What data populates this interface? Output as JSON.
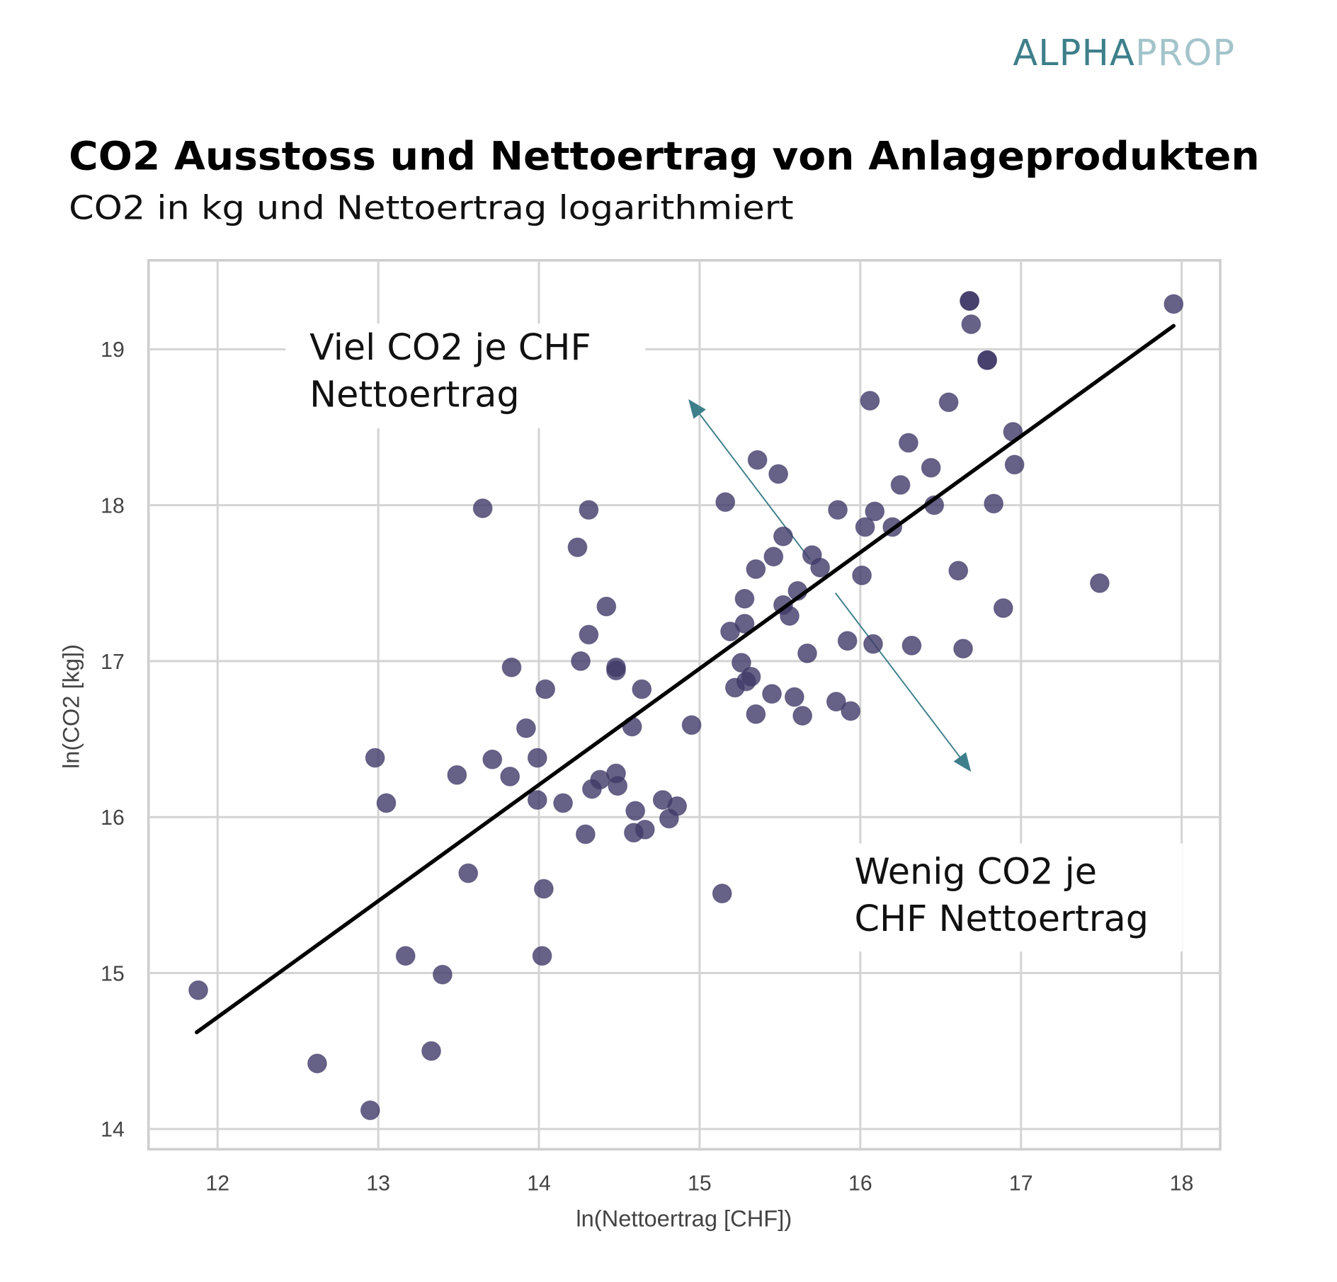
{
  "logo": {
    "text_primary": "ALPHA",
    "text_secondary": "PROP",
    "color_primary": "#3d7f8a",
    "color_secondary": "#a3c4ca"
  },
  "chart_data": {
    "type": "scatter",
    "title": "CO2 Ausstoss und Nettoertrag von Anlageprodukten",
    "subtitle": "CO2 in kg und Nettoertrag logarithmiert",
    "xlabel": "ln(Nettoertrag [CHF])",
    "ylabel": "ln(CO2 [kg])",
    "xlim": [
      11.57,
      18.24
    ],
    "ylim": [
      13.87,
      19.57
    ],
    "xticks": [
      12,
      13,
      14,
      15,
      16,
      17,
      18
    ],
    "yticks": [
      14,
      15,
      16,
      17,
      18,
      19
    ],
    "grid": true,
    "point_color": "#403a68",
    "trend_line": {
      "color": "#000000",
      "points": [
        [
          11.87,
          14.62
        ],
        [
          17.95,
          19.15
        ]
      ]
    },
    "arrow_color": "#3d7f8a",
    "arrow": {
      "from": [
        14.93,
        18.68
      ],
      "to": [
        16.69,
        16.29
      ]
    },
    "annotations": [
      {
        "lines": [
          "Viel CO2 je CHF",
          "Nettoertrag"
        ]
      },
      {
        "lines": [
          "Wenig CO2 je",
          "CHF Nettoertrag"
        ]
      }
    ],
    "points": [
      [
        11.88,
        14.89
      ],
      [
        12.62,
        14.42
      ],
      [
        12.95,
        14.12
      ],
      [
        12.98,
        16.38
      ],
      [
        13.05,
        16.09
      ],
      [
        13.17,
        15.11
      ],
      [
        13.33,
        14.5
      ],
      [
        13.4,
        14.99
      ],
      [
        13.49,
        16.27
      ],
      [
        13.56,
        15.64
      ],
      [
        13.65,
        17.98
      ],
      [
        13.71,
        16.37
      ],
      [
        13.82,
        16.26
      ],
      [
        13.83,
        16.96
      ],
      [
        13.92,
        16.57
      ],
      [
        13.99,
        16.38
      ],
      [
        13.99,
        16.11
      ],
      [
        14.02,
        15.11
      ],
      [
        14.03,
        15.54
      ],
      [
        14.04,
        16.82
      ],
      [
        14.15,
        16.09
      ],
      [
        14.24,
        17.73
      ],
      [
        14.26,
        17.0
      ],
      [
        14.29,
        15.89
      ],
      [
        14.31,
        17.97
      ],
      [
        14.31,
        17.17
      ],
      [
        14.33,
        16.18
      ],
      [
        14.38,
        16.24
      ],
      [
        14.42,
        17.35
      ],
      [
        14.48,
        16.96
      ],
      [
        14.48,
        16.94
      ],
      [
        14.48,
        16.28
      ],
      [
        14.49,
        16.2
      ],
      [
        14.58,
        16.58
      ],
      [
        14.6,
        16.04
      ],
      [
        14.59,
        15.9
      ],
      [
        14.64,
        16.82
      ],
      [
        14.66,
        15.92
      ],
      [
        14.77,
        16.11
      ],
      [
        14.81,
        15.99
      ],
      [
        14.86,
        16.07
      ],
      [
        14.95,
        16.59
      ],
      [
        15.14,
        15.51
      ],
      [
        15.16,
        18.02
      ],
      [
        15.19,
        17.19
      ],
      [
        15.22,
        16.83
      ],
      [
        15.26,
        16.99
      ],
      [
        15.28,
        17.4
      ],
      [
        15.28,
        17.24
      ],
      [
        15.29,
        16.87
      ],
      [
        15.32,
        16.9
      ],
      [
        15.35,
        17.59
      ],
      [
        15.35,
        16.66
      ],
      [
        15.36,
        18.29
      ],
      [
        15.45,
        16.79
      ],
      [
        15.46,
        17.67
      ],
      [
        15.49,
        18.2
      ],
      [
        15.52,
        17.8
      ],
      [
        15.52,
        17.36
      ],
      [
        15.56,
        17.29
      ],
      [
        15.59,
        16.77
      ],
      [
        15.61,
        17.45
      ],
      [
        15.64,
        16.65
      ],
      [
        15.67,
        17.05
      ],
      [
        15.7,
        17.68
      ],
      [
        15.75,
        17.6
      ],
      [
        15.85,
        16.74
      ],
      [
        15.86,
        17.97
      ],
      [
        15.92,
        17.13
      ],
      [
        15.94,
        16.68
      ],
      [
        16.01,
        17.55
      ],
      [
        16.03,
        17.86
      ],
      [
        16.06,
        18.67
      ],
      [
        16.08,
        17.11
      ],
      [
        16.09,
        17.96
      ],
      [
        16.2,
        17.86
      ],
      [
        16.25,
        18.13
      ],
      [
        16.3,
        18.4
      ],
      [
        16.32,
        17.1
      ],
      [
        16.44,
        18.24
      ],
      [
        16.46,
        18.0
      ],
      [
        16.55,
        18.66
      ],
      [
        16.61,
        17.58
      ],
      [
        16.64,
        17.08
      ],
      [
        16.68,
        19.31
      ],
      [
        16.68,
        19.31
      ],
      [
        16.69,
        19.16
      ],
      [
        16.79,
        18.93
      ],
      [
        16.79,
        18.93
      ],
      [
        16.83,
        18.01
      ],
      [
        16.89,
        17.34
      ],
      [
        16.95,
        18.47
      ],
      [
        16.96,
        18.26
      ],
      [
        17.49,
        17.5
      ],
      [
        17.95,
        19.29
      ]
    ]
  }
}
